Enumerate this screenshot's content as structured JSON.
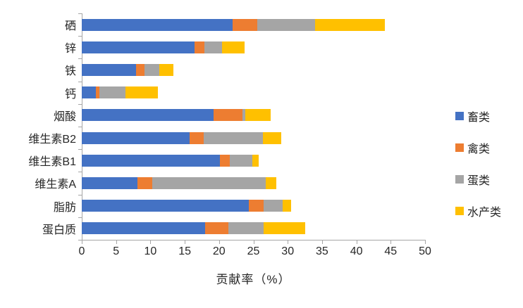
{
  "chart_data": {
    "type": "bar",
    "orientation": "horizontal-stacked",
    "title": "",
    "xlabel": "贡献率（%）",
    "ylabel": "",
    "xlim": [
      0,
      50
    ],
    "xticks": [
      0,
      5,
      10,
      15,
      20,
      25,
      30,
      35,
      40,
      45,
      50
    ],
    "grid": false,
    "legend_position": "right",
    "categories_top_to_bottom": [
      "硒",
      "锌",
      "铁",
      "钙",
      "烟酸",
      "维生素B2",
      "维生素B1",
      "维生素A",
      "脂肪",
      "蛋白质"
    ],
    "series": [
      {
        "name": "畜类",
        "color": "#4472C4",
        "values": [
          22.0,
          16.4,
          7.9,
          2.1,
          19.2,
          15.7,
          20.1,
          8.1,
          24.3,
          18.0
        ]
      },
      {
        "name": "禽类",
        "color": "#ED7D31",
        "values": [
          3.6,
          1.5,
          1.2,
          0.5,
          4.2,
          2.1,
          1.5,
          2.2,
          2.2,
          3.4
        ]
      },
      {
        "name": "蛋类",
        "color": "#A5A5A5",
        "values": [
          8.4,
          2.5,
          2.2,
          3.8,
          0.4,
          8.6,
          3.2,
          16.5,
          2.8,
          5.1
        ]
      },
      {
        "name": "水产类",
        "color": "#FFC000",
        "values": [
          10.2,
          3.3,
          2.0,
          4.7,
          3.7,
          2.7,
          1.0,
          1.5,
          1.2,
          6.0
        ]
      }
    ],
    "axis_color": "#A6A6A6",
    "text_color": "#262626"
  }
}
